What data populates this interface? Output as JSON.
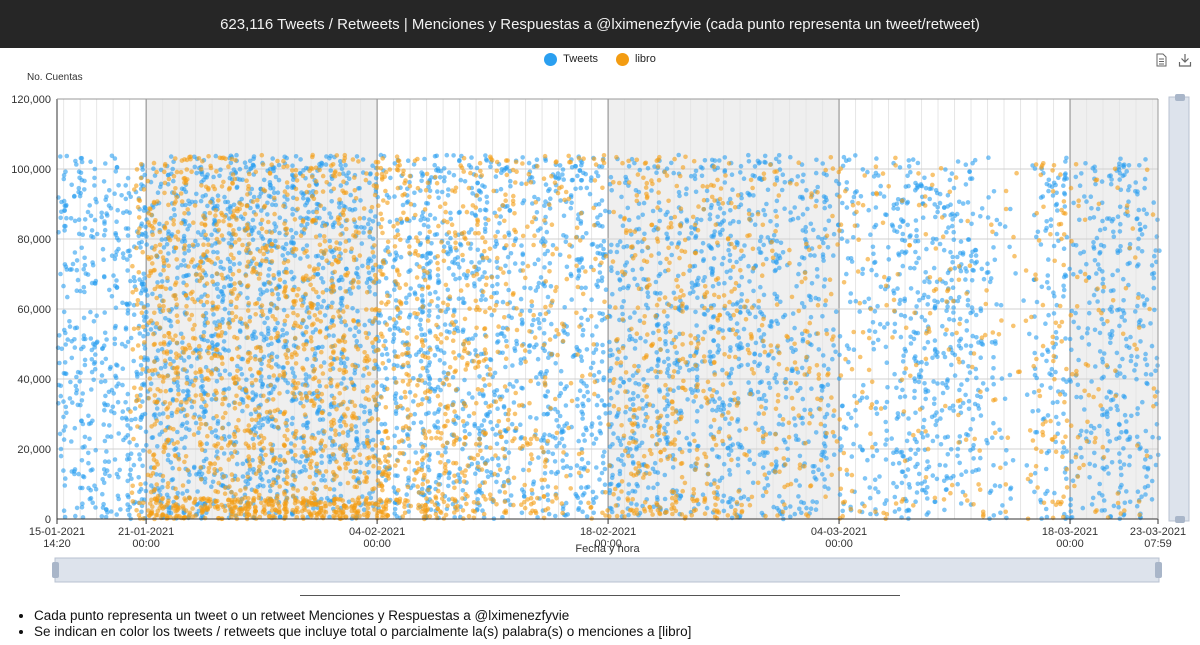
{
  "header": {
    "title": "623,116 Tweets / Retweets | Menciones y Respuestas a @lximenezfyvie (cada punto representa un tweet/retweet)"
  },
  "toolbox": {
    "data_view_icon": "data-view-icon",
    "save_image_icon": "download-icon"
  },
  "notes": [
    "Cada punto representa un tweet o un retweet Menciones y Respuestas a @lximenezfyvie",
    "Se indican en color los tweets / retweets que incluye total o parcialmente la(s) palabra(s) o menciones a [libro]"
  ],
  "chart_data": {
    "type": "scatter",
    "title": "",
    "xlabel": "Fecha y hora",
    "ylabel": "No. Cuentas",
    "ylim": [
      0,
      120000
    ],
    "yticks": [
      "0",
      "20,000",
      "40,000",
      "60,000",
      "80,000",
      "100,000",
      "120,000"
    ],
    "xlim": [
      "15-01-2021 14:20",
      "23-03-2021 07:59"
    ],
    "xticks": [
      {
        "date": "15-01-2021",
        "time": "14:20"
      },
      {
        "date": "21-01-2021",
        "time": "00:00"
      },
      {
        "date": "04-02-2021",
        "time": "00:00"
      },
      {
        "date": "18-02-2021",
        "time": "00:00"
      },
      {
        "date": "04-03-2021",
        "time": "00:00"
      },
      {
        "date": "18-03-2021",
        "time": "00:00"
      },
      {
        "date": "23-03-2021",
        "time": "07:59"
      }
    ],
    "legend_position": "top-center",
    "grid": true,
    "datazoom": true,
    "colors": {
      "tweets": "#2a9ff0",
      "libro": "#f39c12"
    },
    "series": [
      {
        "name": "Tweets",
        "count_max": 104000,
        "density_by_date": [
          [
            "15-01-2021",
            0.55
          ],
          [
            "17-01-2021",
            0.75
          ],
          [
            "19-01-2021",
            0.5
          ],
          [
            "21-01-2021",
            0.85
          ],
          [
            "25-01-2021",
            0.85
          ],
          [
            "01-02-2021",
            0.85
          ],
          [
            "06-02-2021",
            0.75
          ],
          [
            "09-02-2021",
            0.65
          ],
          [
            "12-02-2021",
            0.6
          ],
          [
            "15-02-2021",
            0.55
          ],
          [
            "18-02-2021",
            0.55
          ],
          [
            "21-02-2021",
            0.6
          ],
          [
            "24-02-2021",
            0.6
          ],
          [
            "27-02-2021",
            0.5
          ],
          [
            "03-03-2021",
            0.5
          ],
          [
            "05-03-2021",
            0.25
          ],
          [
            "07-03-2021",
            0.35
          ],
          [
            "09-03-2021",
            0.7
          ],
          [
            "11-03-2021",
            0.55
          ],
          [
            "13-03-2021",
            0.4
          ],
          [
            "15-03-2021",
            0.0
          ],
          [
            "17-03-2021",
            0.55
          ],
          [
            "19-03-2021",
            0.35
          ],
          [
            "21-03-2021",
            0.6
          ],
          [
            "23-03-2021",
            0.55
          ]
        ]
      },
      {
        "name": "libro",
        "count_max": 104000,
        "density_by_date": [
          [
            "15-01-2021",
            0.0
          ],
          [
            "20-01-2021",
            0.0
          ],
          [
            "21-01-2021",
            0.95
          ],
          [
            "25-01-2021",
            0.95
          ],
          [
            "30-01-2021",
            0.95
          ],
          [
            "04-02-2021",
            0.9
          ],
          [
            "06-02-2021",
            0.6
          ],
          [
            "09-02-2021",
            0.5
          ],
          [
            "12-02-2021",
            0.35
          ],
          [
            "16-02-2021",
            0.2
          ],
          [
            "18-02-2021",
            0.15
          ],
          [
            "20-02-2021",
            0.55
          ],
          [
            "23-02-2021",
            0.4
          ],
          [
            "27-02-2021",
            0.2
          ],
          [
            "03-03-2021",
            0.2
          ],
          [
            "07-03-2021",
            0.1
          ],
          [
            "11-03-2021",
            0.15
          ],
          [
            "15-03-2021",
            0.05
          ],
          [
            "17-03-2021",
            0.25
          ],
          [
            "20-03-2021",
            0.1
          ],
          [
            "23-03-2021",
            0.08
          ]
        ]
      }
    ]
  }
}
